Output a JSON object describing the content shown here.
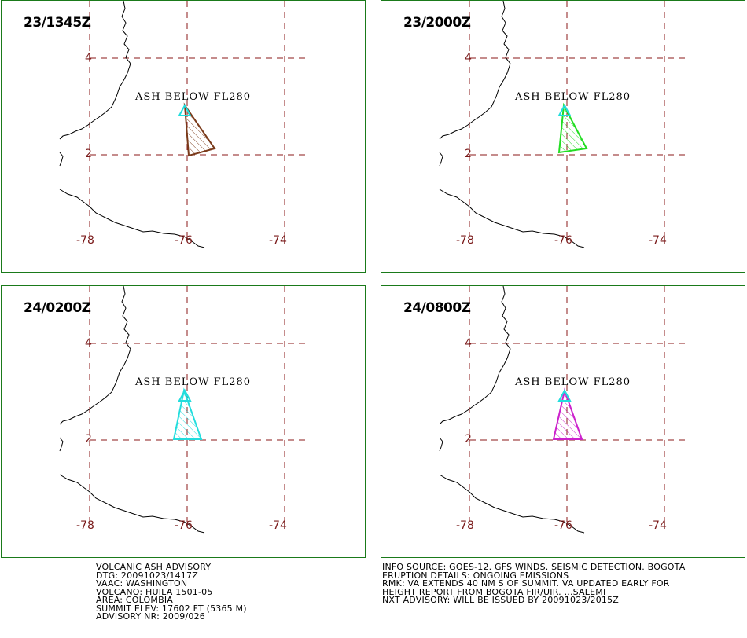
{
  "panels": [
    {
      "time": "23/1345Z",
      "ash": "ASH BELOW FL280",
      "color": "#7a3a1a",
      "lat_labels": [
        "4",
        "2"
      ],
      "lon_labels": [
        "-78",
        "-76",
        "-74"
      ]
    },
    {
      "time": "23/2000Z",
      "ash": "ASH BELOW FL280",
      "color": "#22dd22",
      "lat_labels": [
        "4",
        "2"
      ],
      "lon_labels": [
        "-78",
        "-76",
        "-74"
      ]
    },
    {
      "time": "24/0200Z",
      "ash": "ASH BELOW FL280",
      "color": "#22dddd",
      "lat_labels": [
        "4",
        "2"
      ],
      "lon_labels": [
        "-78",
        "-76",
        "-74"
      ]
    },
    {
      "time": "24/0800Z",
      "ash": "ASH BELOW FL280",
      "color": "#cc22cc",
      "lat_labels": [
        "4",
        "2"
      ],
      "lon_labels": [
        "-78",
        "-76",
        "-74"
      ]
    }
  ],
  "colors": {
    "grid": "#8b1a1a",
    "border": "#1a7a1a",
    "volcano": "#22dddd",
    "coast": "#000000"
  },
  "advisory_left": [
    "VOLCANIC ASH ADVISORY",
    "DTG: 20091023/1417Z",
    "VAAC: WASHINGTON",
    "VOLCANO: HUILA 1501-05",
    "AREA: COLOMBIA",
    "SUMMIT ELEV: 17602 FT (5365 M)",
    "ADVISORY NR: 2009/026"
  ],
  "advisory_right": [
    "INFO SOURCE: GOES-12. GFS WINDS. SEISMIC DETECTION. BOGOTA",
    "ERUPTION DETAILS: ONGOING EMISSIONS",
    "RMK: VA EXTENDS 40 NM S OF SUMMIT. VA UPDATED EARLY FOR",
    "HEIGHT REPORT FROM BOGOTA FIR/UIR. ...SALEMI",
    "NXT ADVISORY: WILL BE ISSUED BY 20091023/2015Z"
  ]
}
